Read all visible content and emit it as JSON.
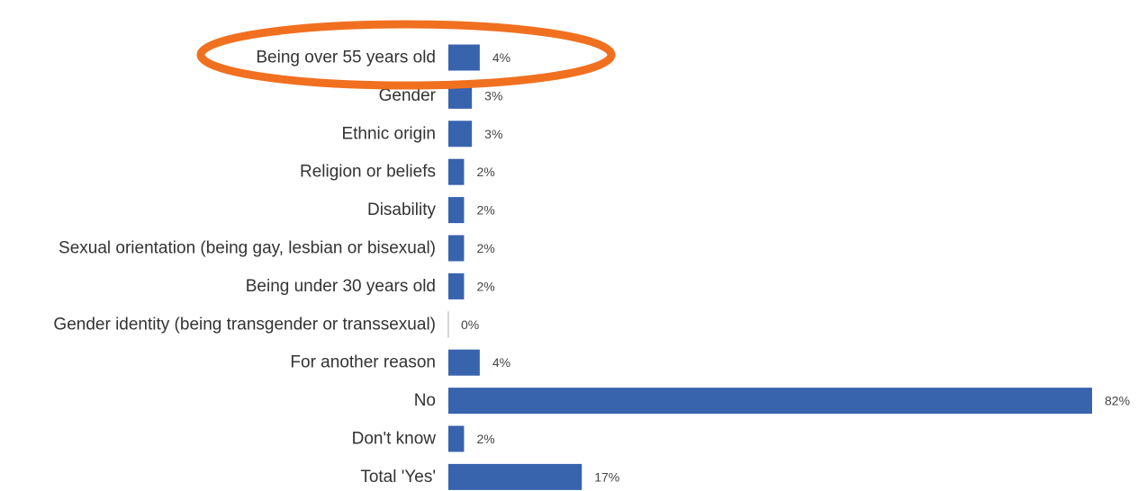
{
  "chart_data": {
    "type": "bar",
    "orientation": "horizontal",
    "categories": [
      "Being over 55 years old",
      "Gender",
      "Ethnic origin",
      "Religion or beliefs",
      "Disability",
      "Sexual orientation (being gay, lesbian or bisexual)",
      "Being under 30 years old",
      "Gender identity (being transgender or transsexual)",
      "For another reason",
      "No",
      "Don't know",
      "Total 'Yes'"
    ],
    "values": [
      4,
      3,
      3,
      2,
      2,
      2,
      2,
      0,
      4,
      82,
      2,
      17
    ],
    "value_labels": [
      "4%",
      "3%",
      "3%",
      "2%",
      "2%",
      "2%",
      "2%",
      "0%",
      "4%",
      "82%",
      "2%",
      "17%"
    ],
    "xlim": [
      0,
      82
    ],
    "grid": false,
    "legend": "none",
    "bar_color": "#3863ad",
    "highlight": {
      "category_index": 0,
      "shape": "ellipse",
      "color": "#f07020"
    }
  }
}
